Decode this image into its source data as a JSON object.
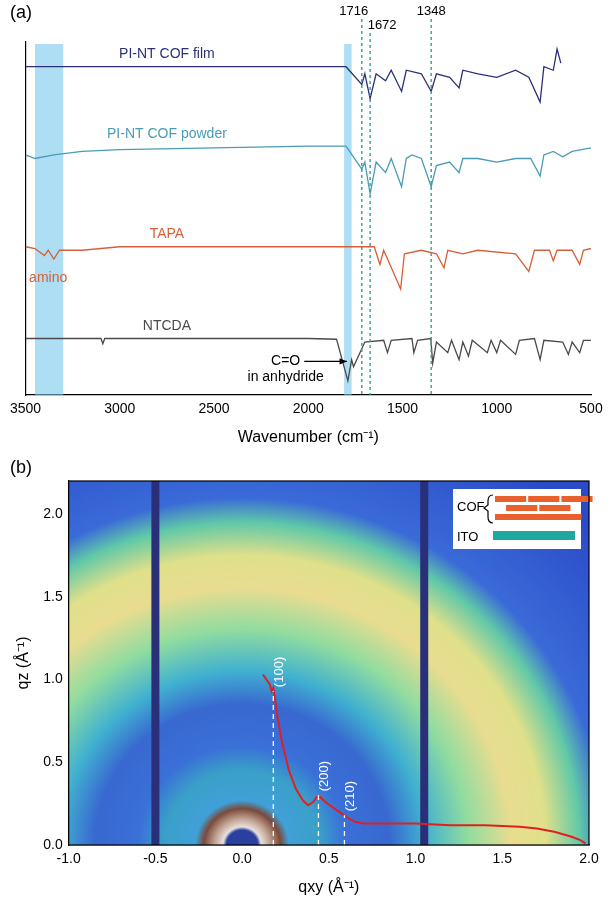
{
  "chart_data": [
    {
      "panel": "(a)",
      "type": "line",
      "x_label": "Wavenumber (cm⁻¹)",
      "xlim": [
        3500,
        500
      ],
      "xticks": [
        3500,
        3000,
        2500,
        2000,
        1500,
        1000,
        500
      ],
      "ylim": [
        0,
        10
      ],
      "tick_labels": "x",
      "grid": false,
      "bands": [
        [
          3300,
          3450
        ],
        [
          1770,
          1810
        ]
      ],
      "reference_lines": [
        1716,
        1672,
        1348
      ],
      "annotations": [
        {
          "text": [
            "amino"
          ],
          "x": 3380,
          "y": 3.3,
          "color": "#d4603a"
        },
        {
          "text": [
            "C=O",
            "in anhydride"
          ],
          "x": 2120,
          "y": 0.95,
          "color": "#000000",
          "arrow_to": [
            1795,
            0.95
          ]
        }
      ],
      "series": [
        {
          "name": "PI-NT COF film",
          "color": "#2c2f7a",
          "label_x": 2750,
          "label_y": 9.45,
          "x": [
            3500,
            2000,
            1800,
            1716,
            1700,
            1672,
            1640,
            1590,
            1560,
            1505,
            1480,
            1400,
            1348,
            1320,
            1250,
            1200,
            1180,
            1100,
            1000,
            900,
            830,
            770,
            750,
            700,
            680,
            660
          ],
          "values": [
            9.3,
            9.3,
            9.3,
            8.8,
            9.1,
            8.4,
            9.1,
            8.9,
            9.2,
            8.6,
            9.2,
            9.1,
            8.6,
            9.1,
            9.0,
            8.7,
            9.2,
            9.1,
            9.0,
            9.2,
            9.0,
            8.3,
            9.3,
            9.2,
            9.8,
            9.4
          ]
        },
        {
          "name": "PI-NT COF powder",
          "color": "#4a9bb5",
          "label_x": 2750,
          "label_y": 7.2,
          "x": [
            3500,
            3450,
            3350,
            3200,
            3000,
            2500,
            2000,
            1800,
            1716,
            1700,
            1672,
            1640,
            1590,
            1560,
            1505,
            1480,
            1450,
            1400,
            1348,
            1320,
            1250,
            1200,
            1180,
            1100,
            1000,
            900,
            820,
            770,
            750,
            700,
            650,
            600,
            500
          ],
          "values": [
            6.8,
            6.7,
            6.8,
            6.9,
            6.95,
            7.0,
            7.05,
            7.05,
            6.4,
            6.6,
            5.7,
            6.6,
            6.3,
            6.7,
            5.9,
            6.7,
            6.8,
            6.7,
            5.9,
            6.5,
            6.6,
            6.3,
            6.7,
            6.7,
            6.6,
            6.7,
            6.7,
            6.2,
            6.8,
            6.9,
            6.75,
            6.9,
            7.0
          ]
        },
        {
          "name": "TAPA",
          "color": "#d4603a",
          "label_x": 2750,
          "label_y": 4.35,
          "x": [
            3500,
            3450,
            3400,
            3380,
            3350,
            3320,
            3200,
            3000,
            2000,
            1650,
            1620,
            1600,
            1510,
            1490,
            1400,
            1320,
            1280,
            1260,
            1180,
            1100,
            900,
            830,
            800,
            720,
            700,
            680,
            600,
            560,
            540,
            500
          ],
          "values": [
            4.2,
            4.15,
            3.95,
            4.1,
            3.85,
            4.1,
            4.1,
            4.2,
            4.2,
            4.2,
            3.7,
            4.1,
            3.0,
            4.0,
            4.1,
            4.0,
            3.6,
            4.1,
            4.0,
            4.1,
            4.0,
            3.5,
            4.1,
            4.1,
            3.8,
            4.1,
            4.1,
            3.7,
            4.1,
            4.15
          ]
        },
        {
          "name": "NTCDA",
          "color": "#4a4a4a",
          "label_x": 2750,
          "label_y": 1.75,
          "x": [
            3500,
            3100,
            3090,
            3080,
            2000,
            1850,
            1790,
            1770,
            1760,
            1700,
            1600,
            1580,
            1560,
            1450,
            1440,
            1420,
            1350,
            1340,
            1320,
            1260,
            1240,
            1200,
            1180,
            1150,
            1130,
            1050,
            1030,
            1000,
            980,
            900,
            880,
            800,
            770,
            750,
            650,
            620,
            600,
            560,
            540,
            500
          ],
          "values": [
            1.6,
            1.6,
            1.45,
            1.6,
            1.6,
            1.58,
            0.4,
            1.0,
            0.8,
            1.5,
            1.55,
            1.2,
            1.55,
            1.6,
            1.2,
            1.55,
            1.6,
            0.9,
            1.5,
            1.2,
            1.55,
            1.0,
            1.5,
            1.1,
            1.55,
            1.2,
            1.55,
            1.2,
            1.55,
            1.15,
            1.55,
            1.6,
            1.0,
            1.55,
            1.5,
            1.15,
            1.5,
            1.2,
            1.55,
            1.55
          ]
        }
      ]
    },
    {
      "panel": "(b)",
      "type": "line",
      "x_label": "qxy (Å⁻¹)",
      "y_label": "qz (Å⁻¹)",
      "xlim": [
        -1.0,
        2.0
      ],
      "xticks": [
        {
          "value": -1,
          "label": "-1.0"
        },
        {
          "value": -0.5,
          "label": "-0.5"
        },
        {
          "value": 0,
          "label": "0.0"
        },
        0.5,
        {
          "value": 1,
          "label": "1.0"
        },
        1.5,
        {
          "value": 2,
          "label": "2.0"
        }
      ],
      "ylim": [
        0,
        2.2
      ],
      "yticks": [
        {
          "value": 0,
          "label": "0.0"
        },
        0.5,
        {
          "value": 1,
          "label": "1.0"
        },
        1.5,
        {
          "value": 2,
          "label": "2.0"
        }
      ],
      "grid": false,
      "intensity_map": [
        {
          "q": 0,
          "color": "#2a3fa0"
        },
        {
          "q": 0.09,
          "color": "#2a3fa0"
        },
        {
          "q": 0.11,
          "color": "#e8e0dc"
        },
        {
          "q": 0.16,
          "color": "#c0a090"
        },
        {
          "q": 0.22,
          "color": "#7a4a3a"
        },
        {
          "q": 0.27,
          "color": "#40a0d8"
        },
        {
          "q": 0.45,
          "color": "#3aa0c8"
        },
        {
          "q": 0.6,
          "color": "#3a70d8"
        },
        {
          "q": 0.85,
          "color": "#3868d0"
        },
        {
          "q": 1.05,
          "color": "#40b0d0"
        },
        {
          "q": 1.3,
          "color": "#90dca0"
        },
        {
          "q": 1.55,
          "color": "#e8dc90"
        },
        {
          "q": 1.75,
          "color": "#e0e08a"
        },
        {
          "q": 1.95,
          "color": "#60c8a8"
        },
        {
          "q": 2.1,
          "color": "#3a6ad8"
        },
        {
          "q": 2.8,
          "color": "#2a4ac8"
        }
      ],
      "detector_gaps": [
        -0.5,
        1.05
      ],
      "peaks": [
        {
          "q": 0.18,
          "top": 0.93,
          "label": "(100)"
        },
        {
          "q": 0.44,
          "top": 0.3,
          "label": "(200)"
        },
        {
          "q": 0.59,
          "top": 0.18,
          "label": "(210)"
        }
      ],
      "inset": {
        "labels": [
          "COF",
          "ITO"
        ]
      },
      "series": [
        {
          "color": "#e02020",
          "x": [
            0.12,
            0.14,
            0.16,
            0.17,
            0.18,
            0.2,
            0.23,
            0.27,
            0.31,
            0.35,
            0.38,
            0.41,
            0.43,
            0.45,
            0.48,
            0.52,
            0.56,
            0.6,
            0.65,
            0.7,
            0.8,
            1.0,
            1.2,
            1.4,
            1.6,
            1.7,
            1.8,
            1.9,
            1.95,
            1.98
          ],
          "values": [
            1.03,
            1.0,
            0.97,
            0.93,
            0.95,
            0.8,
            0.62,
            0.45,
            0.34,
            0.27,
            0.24,
            0.26,
            0.29,
            0.29,
            0.26,
            0.23,
            0.2,
            0.17,
            0.14,
            0.13,
            0.13,
            0.13,
            0.12,
            0.12,
            0.11,
            0.1,
            0.08,
            0.05,
            0.03,
            0.01
          ]
        }
      ]
    }
  ]
}
